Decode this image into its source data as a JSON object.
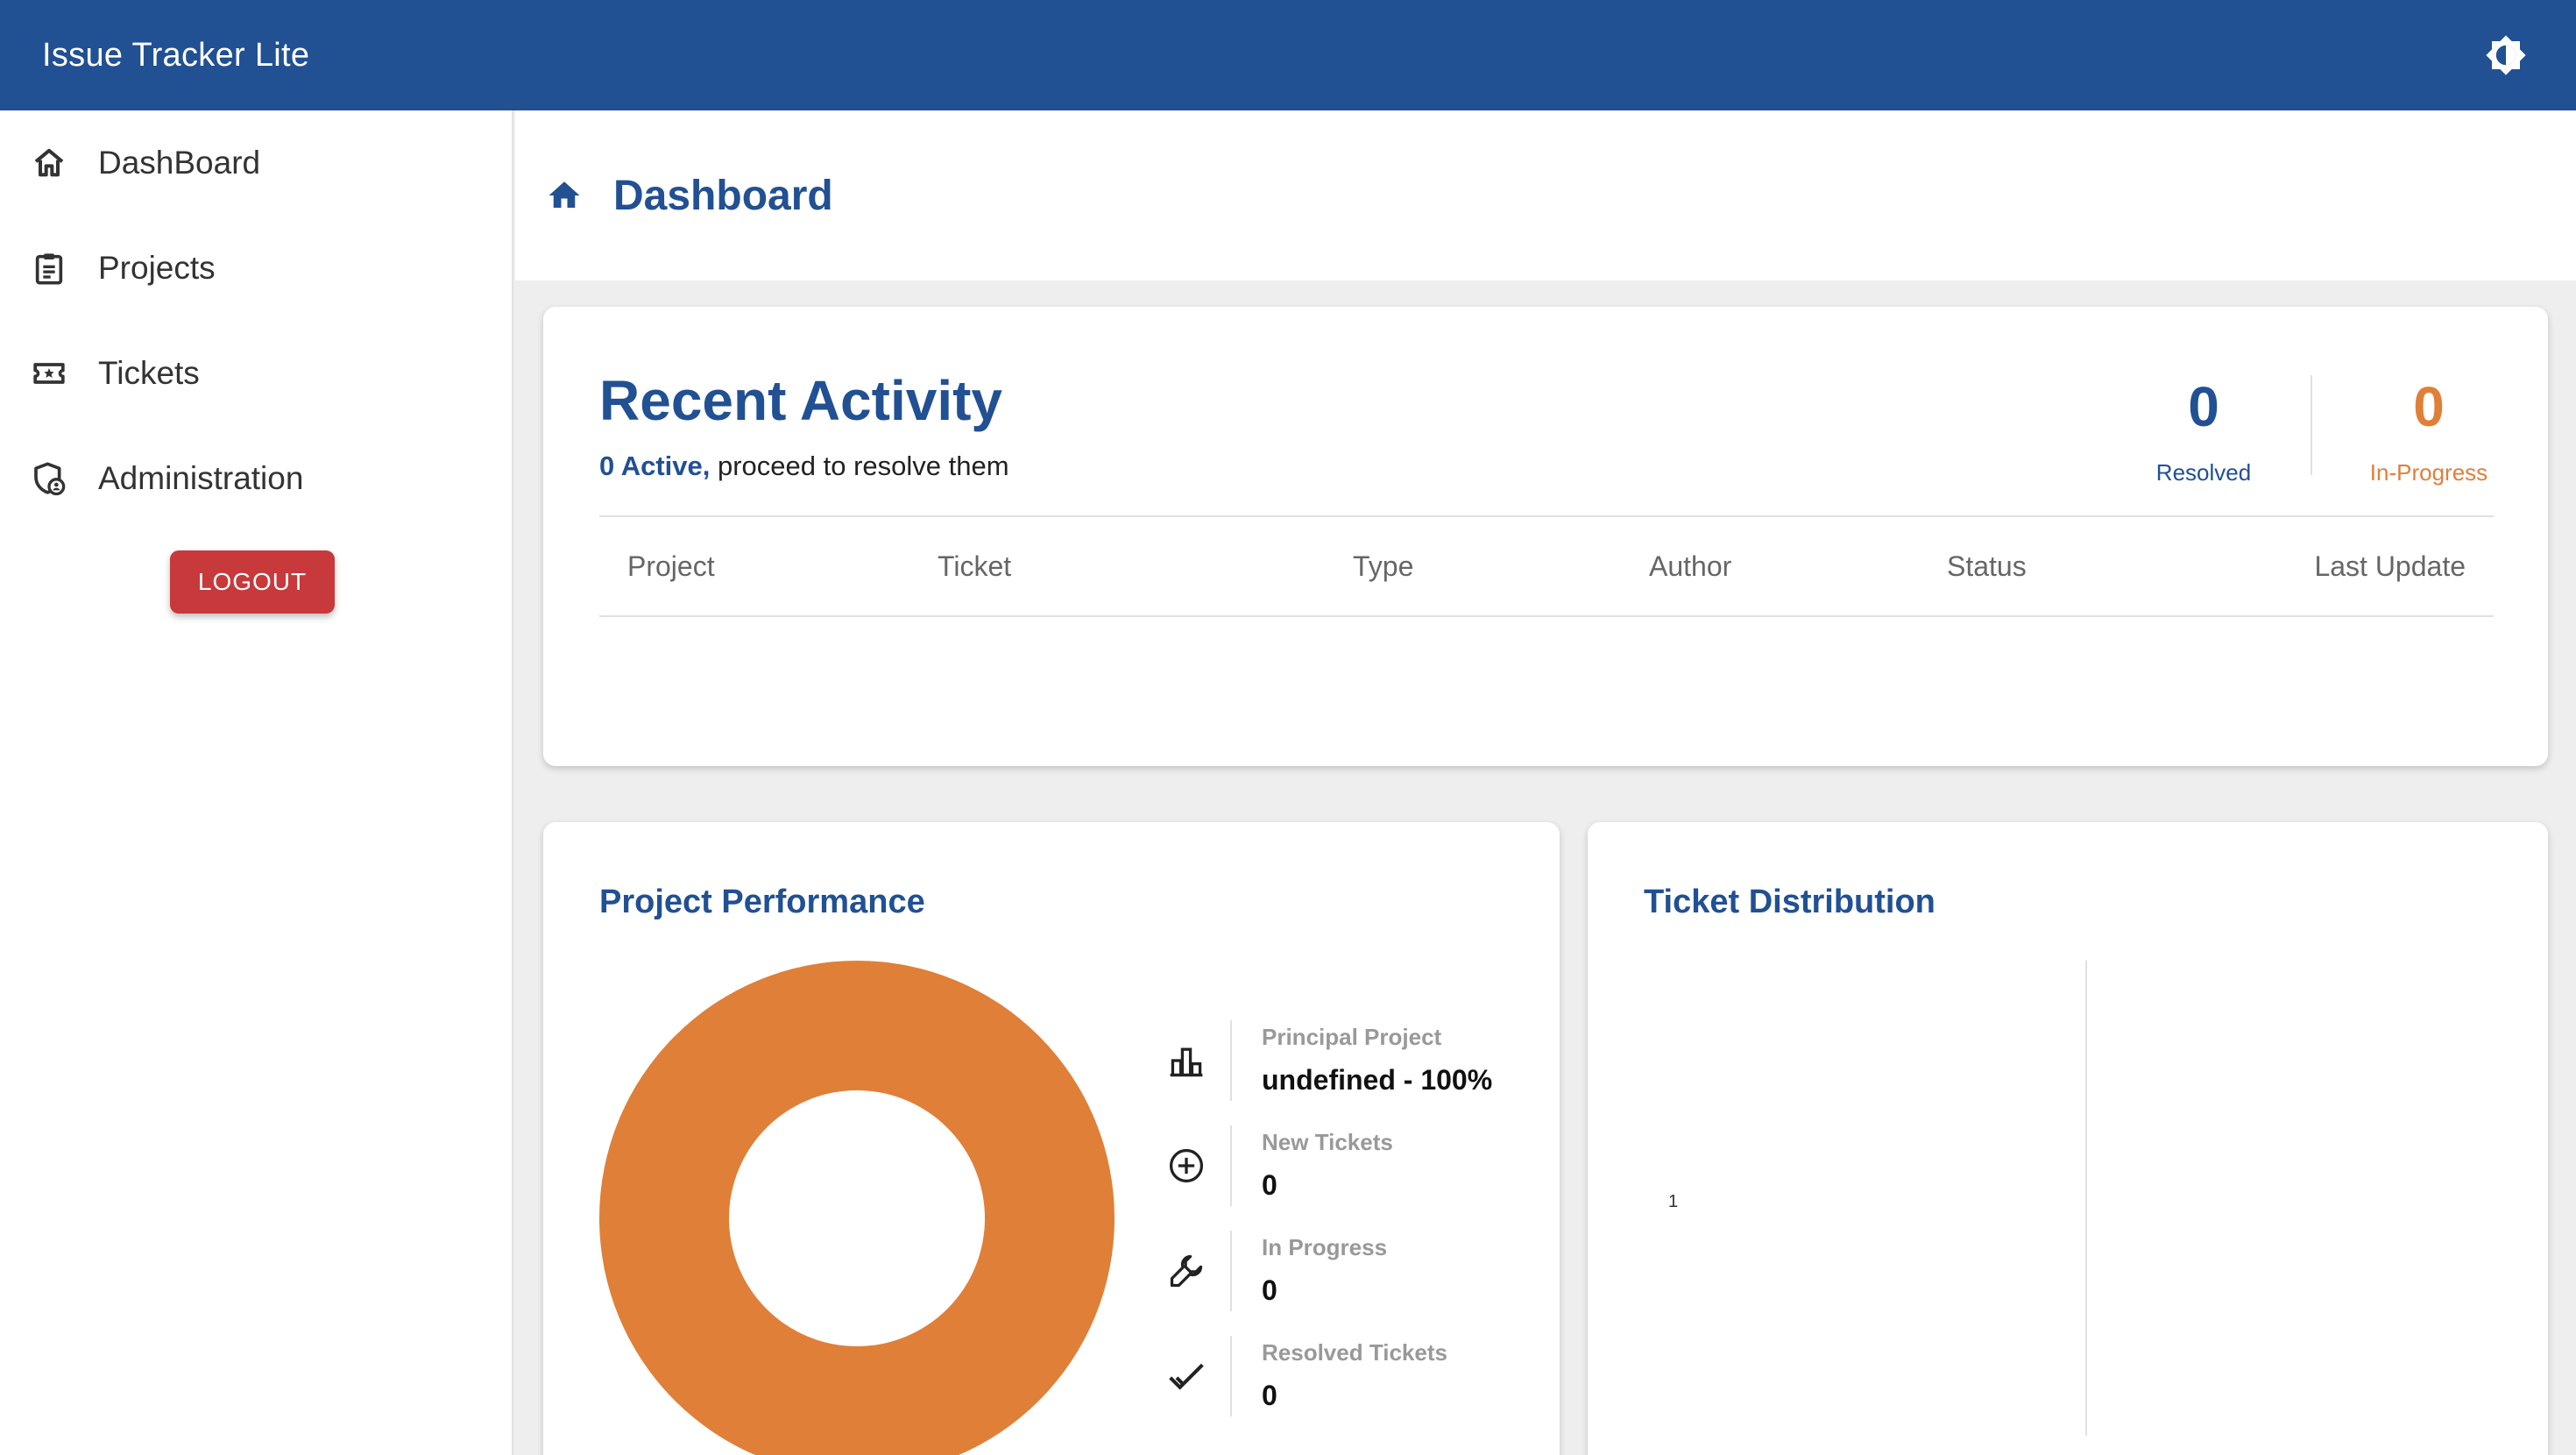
{
  "app": {
    "title": "Issue Tracker Lite",
    "theme_toggle_icon": "brightness-icon"
  },
  "sidebar": {
    "items": [
      {
        "label": "DashBoard",
        "icon": "home-outline-icon"
      },
      {
        "label": "Projects",
        "icon": "clipboard-icon"
      },
      {
        "label": "Tickets",
        "icon": "ticket-icon"
      },
      {
        "label": "Administration",
        "icon": "admin-shield-icon"
      }
    ],
    "logout_label": "LOGOUT"
  },
  "header": {
    "title": "Dashboard",
    "icon": "home-icon"
  },
  "recent_activity": {
    "title": "Recent Activity",
    "active_count": "0 Active,",
    "subtitle_rest": " proceed to resolve them",
    "resolved_value": "0",
    "resolved_label": "Resolved",
    "in_progress_value": "0",
    "in_progress_label": "In-Progress",
    "columns": [
      "Project",
      "Ticket",
      "Type",
      "Author",
      "Status",
      "Last Update"
    ],
    "rows": []
  },
  "project_performance": {
    "title": "Project Performance",
    "stats": [
      {
        "label": "Principal Project",
        "value": "undefined - 100%",
        "icon": "bar-chart-icon"
      },
      {
        "label": "New Tickets",
        "value": "0",
        "icon": "add-circle-icon"
      },
      {
        "label": "In Progress",
        "value": "0",
        "icon": "wrench-icon"
      },
      {
        "label": "Resolved Tickets",
        "value": "0",
        "icon": "checkmark-icon"
      }
    ]
  },
  "ticket_distribution": {
    "title": "Ticket Distribution",
    "tick_label": "1"
  },
  "chart_data": {
    "type": "pie",
    "variant": "donut",
    "title": "Project Performance",
    "slices": [
      {
        "label": "undefined",
        "value": 100
      }
    ],
    "colors": [
      "#e07f38"
    ]
  },
  "colors": {
    "primary": "#215093",
    "accent_orange": "#e07f38",
    "logout_red": "#c8393b"
  }
}
